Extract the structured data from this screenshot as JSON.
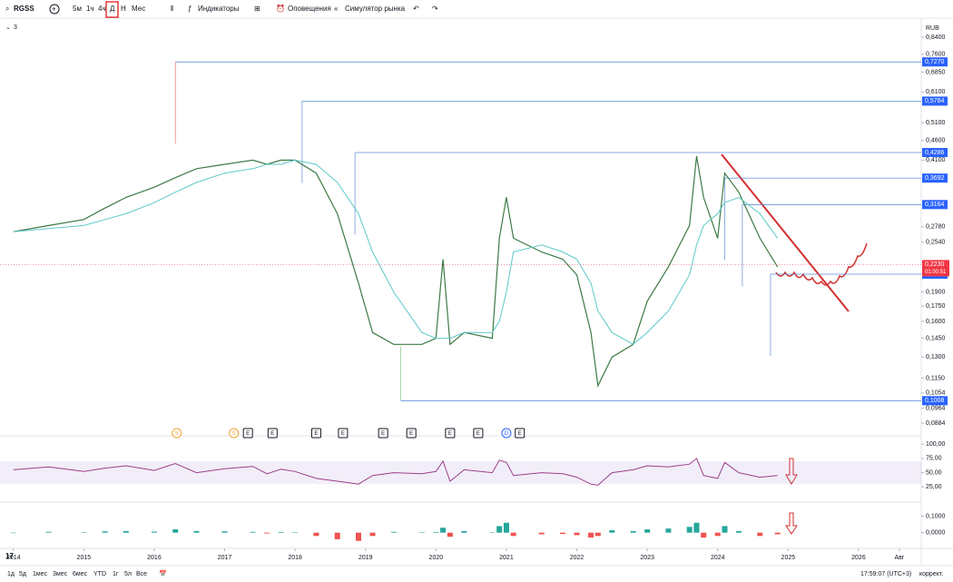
{
  "toolbar": {
    "symbol": "RGSS",
    "intervals": [
      "5м",
      "1ч",
      "4ч",
      "Д",
      "Н",
      "Мес"
    ],
    "indicators": "Индикаторы",
    "alerts": "Оповещения",
    "replay": "Симулятор рынка"
  },
  "legend_count": "3",
  "chart_data": {
    "type": "line",
    "currency": "RUB",
    "log_scale": true,
    "x": [
      2014.0,
      2014.5,
      2015.0,
      2015.3,
      2015.6,
      2016.0,
      2016.3,
      2016.6,
      2017.0,
      2017.4,
      2017.6,
      2017.8,
      2018.0,
      2018.3,
      2018.6,
      2018.9,
      2019.1,
      2019.4,
      2019.8,
      2020.0,
      2020.1,
      2020.2,
      2020.4,
      2020.8,
      2020.9,
      2021.0,
      2021.1,
      2021.5,
      2021.8,
      2022.0,
      2022.2,
      2022.3,
      2022.5,
      2022.8,
      2023.0,
      2023.3,
      2023.6,
      2023.7,
      2023.8,
      2024.0,
      2024.1,
      2024.3,
      2024.6,
      2024.85
    ],
    "series": [
      {
        "color": "#3d7a46",
        "values": [
          0.27,
          0.28,
          0.29,
          0.31,
          0.33,
          0.35,
          0.37,
          0.39,
          0.4,
          0.41,
          0.4,
          0.41,
          0.41,
          0.38,
          0.3,
          0.2,
          0.15,
          0.14,
          0.14,
          0.145,
          0.23,
          0.14,
          0.15,
          0.145,
          0.26,
          0.33,
          0.26,
          0.24,
          0.23,
          0.21,
          0.15,
          0.11,
          0.13,
          0.14,
          0.18,
          0.22,
          0.28,
          0.42,
          0.33,
          0.26,
          0.38,
          0.34,
          0.26,
          0.22
        ]
      },
      {
        "color": "#5cc8c8",
        "values": [
          0.27,
          0.275,
          0.28,
          0.29,
          0.3,
          0.32,
          0.34,
          0.36,
          0.38,
          0.39,
          0.4,
          0.4,
          0.41,
          0.4,
          0.36,
          0.3,
          0.24,
          0.19,
          0.15,
          0.145,
          0.145,
          0.145,
          0.15,
          0.15,
          0.16,
          0.19,
          0.24,
          0.25,
          0.24,
          0.23,
          0.2,
          0.17,
          0.15,
          0.14,
          0.15,
          0.17,
          0.21,
          0.25,
          0.28,
          0.3,
          0.32,
          0.33,
          0.3,
          0.26
        ]
      }
    ],
    "xlim": [
      2013.81,
      2026.89
    ],
    "xticks": [
      {
        "value": 2014,
        "label": "2014"
      },
      {
        "value": 2015,
        "label": "2015"
      },
      {
        "value": 2016,
        "label": "2016"
      },
      {
        "value": 2017,
        "label": "2017"
      },
      {
        "value": 2018,
        "label": "2018"
      },
      {
        "value": 2019,
        "label": "2019"
      },
      {
        "value": 2020,
        "label": "2020"
      },
      {
        "value": 2021,
        "label": "2021"
      },
      {
        "value": 2022,
        "label": "2022"
      },
      {
        "value": 2023,
        "label": "2023"
      },
      {
        "value": 2024,
        "label": "2024"
      },
      {
        "value": 2025,
        "label": "2025"
      },
      {
        "value": 2026,
        "label": "2026"
      },
      {
        "value": 2026.58,
        "label": "Авг"
      }
    ],
    "ylim": [
      0.083,
      0.89
    ],
    "yticks": [
      {
        "value": 0.84,
        "label": "0,8400"
      },
      {
        "value": 0.76,
        "label": "0,7600"
      },
      {
        "value": 0.685,
        "label": "0,6850"
      },
      {
        "value": 0.61,
        "label": "0,6100"
      },
      {
        "value": 0.51,
        "label": "0,5100"
      },
      {
        "value": 0.46,
        "label": "0,4600"
      },
      {
        "value": 0.41,
        "label": "0,4100"
      },
      {
        "value": 0.278,
        "label": "0,2780"
      },
      {
        "value": 0.254,
        "label": "0,2540"
      },
      {
        "value": 0.19,
        "label": "0,1900"
      },
      {
        "value": 0.175,
        "label": "0,1750"
      },
      {
        "value": 0.16,
        "label": "0,1600"
      },
      {
        "value": 0.145,
        "label": "0,1450"
      },
      {
        "value": 0.13,
        "label": "0,1300"
      },
      {
        "value": 0.115,
        "label": "0,1150"
      },
      {
        "value": 0.1054,
        "label": "0,1054"
      },
      {
        "value": 0.0964,
        "label": "0,0964"
      },
      {
        "value": 0.0884,
        "label": "0,0884"
      }
    ],
    "level_color": "#2962ff",
    "levels": [
      {
        "value": 0.727,
        "label": "0,7270",
        "start": 2016.3
      },
      {
        "value": 0.5784,
        "label": "0,5784",
        "start": 2018.1
      },
      {
        "value": 0.4286,
        "label": "0,4286",
        "start": 2018.85
      },
      {
        "value": 0.3692,
        "label": "0,3692",
        "start": 2024.1
      },
      {
        "value": 0.3164,
        "label": "0,3164",
        "start": 2024.35
      },
      {
        "value": 0.2108,
        "label": "0,2108",
        "start": 2024.75
      },
      {
        "value": 0.1008,
        "label": "0,1008",
        "start": 2019.5
      }
    ],
    "last_price": {
      "value": 0.223,
      "label": "0,2230",
      "countdown": "01:00:51",
      "color": "#f23645"
    },
    "events": [
      {
        "x": 2016.32,
        "label": "S"
      },
      {
        "x": 2017.13,
        "label": "S"
      },
      {
        "x": 2017.33,
        "label": "E"
      },
      {
        "x": 2017.68,
        "label": "E"
      },
      {
        "x": 2018.3,
        "label": "E"
      },
      {
        "x": 2018.68,
        "label": "E"
      },
      {
        "x": 2019.25,
        "label": "E"
      },
      {
        "x": 2019.65,
        "label": "E"
      },
      {
        "x": 2020.2,
        "label": "E"
      },
      {
        "x": 2020.6,
        "label": "E"
      },
      {
        "x": 2021.0,
        "label": "D"
      },
      {
        "x": 2021.19,
        "label": "E"
      }
    ],
    "rsi": {
      "color": "#9c3f8a",
      "ylim": [
        0,
        113
      ],
      "yticks": [
        {
          "value": 100,
          "label": "100,00"
        },
        {
          "value": 75,
          "label": "75,00"
        },
        {
          "value": 50,
          "label": "50,00"
        },
        {
          "value": 25,
          "label": "25,00"
        }
      ],
      "values": [
        55,
        60,
        52,
        58,
        62,
        54,
        66,
        50,
        57,
        61,
        48,
        56,
        52,
        40,
        35,
        30,
        45,
        50,
        48,
        52,
        70,
        35,
        55,
        50,
        72,
        68,
        45,
        50,
        48,
        42,
        30,
        28,
        50,
        55,
        62,
        60,
        65,
        75,
        45,
        40,
        68,
        50,
        42,
        45
      ]
    },
    "macd": {
      "ylim": [
        -0.09,
        0.18
      ],
      "yticks": [
        {
          "value": 0.1,
          "label": "0,1000"
        },
        {
          "value": 0,
          "label": "0,0000"
        }
      ],
      "values": [
        0,
        0.005,
        0.003,
        0.008,
        0.01,
        0.006,
        0.02,
        0.01,
        0.008,
        0.005,
        -0.005,
        0.004,
        0.002,
        -0.02,
        -0.04,
        -0.05,
        -0.02,
        0.005,
        0.003,
        0.004,
        0.03,
        -0.025,
        0.01,
        0.002,
        0.04,
        0.06,
        -0.02,
        -0.01,
        -0.008,
        -0.015,
        -0.03,
        -0.02,
        0.015,
        0.01,
        0.02,
        0.025,
        0.035,
        0.06,
        -0.03,
        -0.02,
        0.04,
        0.01,
        -0.02,
        -0.01
      ]
    }
  },
  "footer": {
    "ranges": [
      "1д",
      "5д",
      "1мес",
      "3мес",
      "6мес",
      "YTD",
      "1г",
      "5л",
      "Все"
    ],
    "time": "17:59:07 (UTC+3)",
    "adjust": "коррект."
  }
}
